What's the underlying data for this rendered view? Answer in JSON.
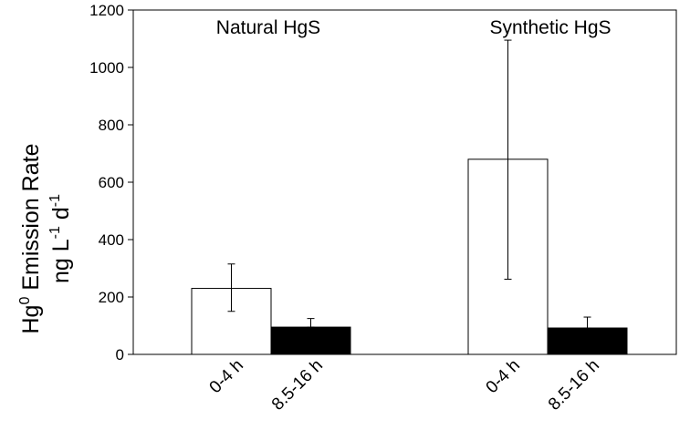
{
  "chart_data": {
    "type": "bar",
    "ylabel_line1_base": "Hg",
    "ylabel_line1_sup": "0",
    "ylabel_line1_rest": " Emission Rate",
    "ylabel_line2_unit1": "ng L",
    "ylabel_line2_sup1": "-1",
    "ylabel_line2_unit2": " d",
    "ylabel_line2_sup2": "-1",
    "ylim": [
      0,
      1200
    ],
    "yticks": [
      "0",
      "200",
      "400",
      "600",
      "800",
      "1000",
      "1200"
    ],
    "grid": false,
    "groups": [
      {
        "label": "Natural HgS",
        "bars": [
          {
            "category": "0-4 h",
            "value": 230,
            "err_low": 150,
            "err_high": 315,
            "fill": "#ffffff"
          },
          {
            "category": "8.5-16 h",
            "value": 95,
            "err_low": 95,
            "err_high": 125,
            "fill": "#000000"
          }
        ]
      },
      {
        "label": "Synthetic HgS",
        "bars": [
          {
            "category": "0-4 h",
            "value": 680,
            "err_low": 262,
            "err_high": 1095,
            "fill": "#ffffff"
          },
          {
            "category": "8.5-16 h",
            "value": 92,
            "err_low": 92,
            "err_high": 130,
            "fill": "#000000"
          }
        ]
      }
    ]
  }
}
